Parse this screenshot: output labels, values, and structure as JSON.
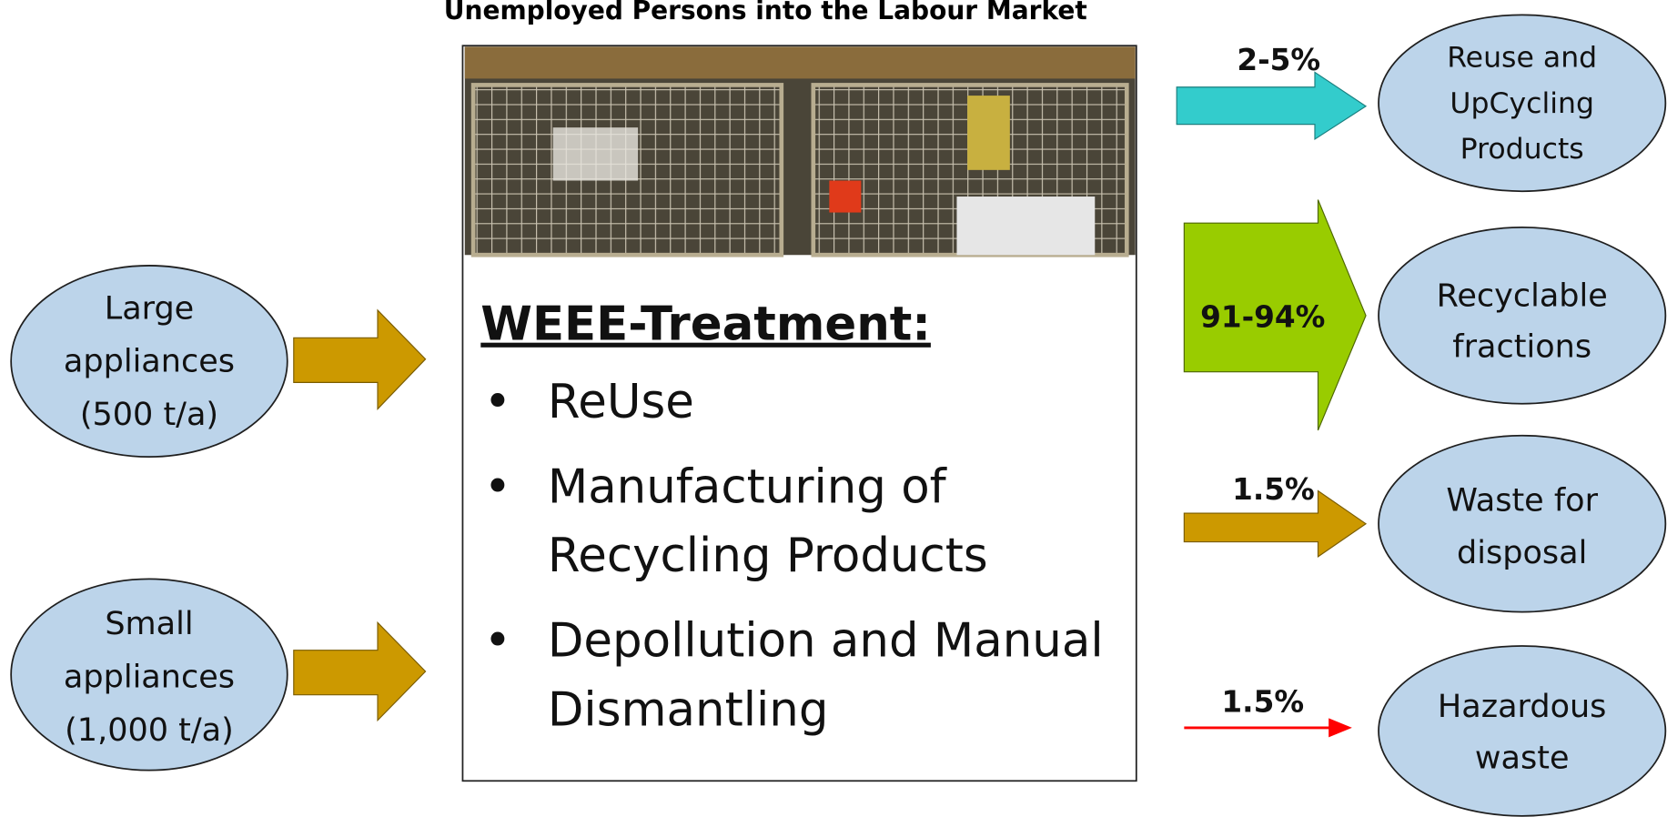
{
  "title": "Unemployed Persons into the Labour Market",
  "inputs": [
    {
      "lines": [
        "Large",
        "appliances",
        "(500 t/a)"
      ]
    },
    {
      "lines": [
        "Small",
        "appliances",
        "(1,000 t/a)"
      ]
    }
  ],
  "treatment": {
    "heading": "WEEE-Treatment:",
    "items": [
      {
        "lines": [
          "ReUse"
        ]
      },
      {
        "lines": [
          "Manufacturing of",
          "Recycling Products"
        ]
      },
      {
        "lines": [
          "Depollution and Manual",
          "Dismantling"
        ]
      }
    ]
  },
  "outputs": [
    {
      "percent": "2-5%",
      "lines": [
        "Reuse and",
        "UpCycling",
        "Products"
      ]
    },
    {
      "percent": "91-94%",
      "lines": [
        "Recyclable",
        "fractions"
      ]
    },
    {
      "percent": "1.5%",
      "lines": [
        "Waste for",
        "disposal"
      ]
    },
    {
      "percent": "1.5%",
      "lines": [
        "Hazardous",
        "waste"
      ]
    }
  ]
}
